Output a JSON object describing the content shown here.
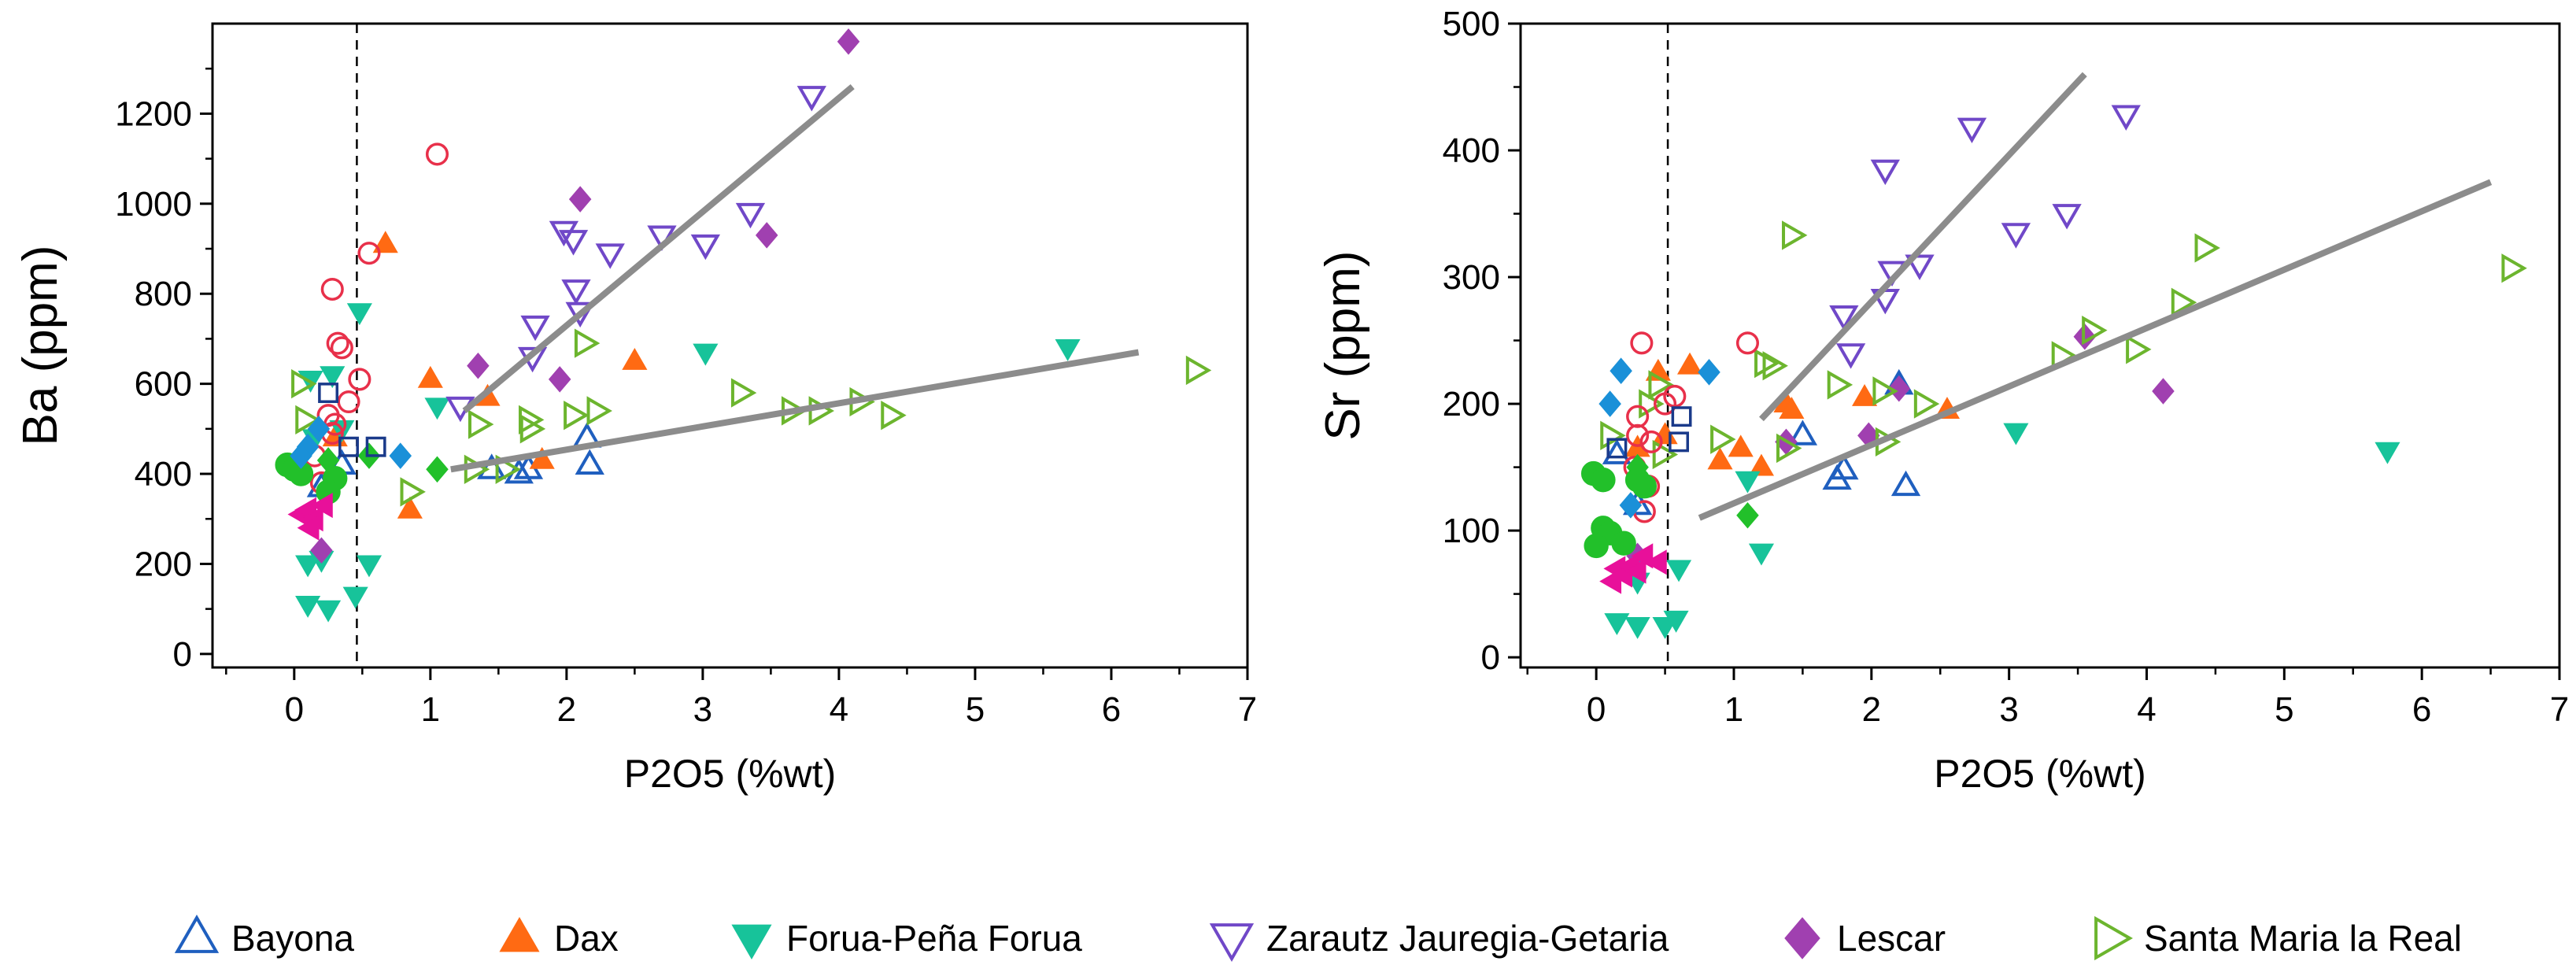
{
  "colors": {
    "bayona": "#1f5fbf",
    "dax": "#ff6a13",
    "forua": "#17c39a",
    "zarautz": "#7048c8",
    "lescar": "#a040b0",
    "santa_maria": "#6cb52e",
    "circle_open": "#e8304a",
    "green_fill": "#22c02a",
    "magenta_fill": "#e8109a",
    "blue_fill": "#1a90d8",
    "trend": "#8c8c8c"
  },
  "legend": {
    "items": [
      {
        "label": "Bayona",
        "marker": "triangle-up-open",
        "color": "#1f5fbf"
      },
      {
        "label": "Dax",
        "marker": "triangle-up-filled",
        "color": "#ff6a13"
      },
      {
        "label": "Forua-Peña Forua",
        "marker": "triangle-down-filled",
        "color": "#17c39a"
      },
      {
        "label": "Zarautz Jauregia-Getaria",
        "marker": "triangle-down-open",
        "color": "#7048c8"
      },
      {
        "label": "Lescar",
        "marker": "diamond-filled",
        "color": "#a040b0"
      },
      {
        "label": "Santa Maria la Real",
        "marker": "triangle-right-open",
        "color": "#6cb52e"
      }
    ]
  },
  "chart_data": [
    {
      "type": "scatter",
      "title": "",
      "xlabel": "P2O5 (%wt)",
      "ylabel": "Ba (ppm)",
      "xlim": [
        -0.6,
        7
      ],
      "ylim": [
        -30,
        1400
      ],
      "xticks": [
        0,
        1,
        2,
        3,
        4,
        5,
        6,
        7
      ],
      "yticks": [
        0,
        200,
        400,
        600,
        800,
        1000,
        1200
      ],
      "threshold_x": 0.46,
      "series": [
        {
          "name": "Bayona",
          "marker": "triangle-up-open",
          "color": "#1f5fbf",
          "points": [
            [
              1.45,
              410
            ],
            [
              1.65,
              400
            ],
            [
              1.72,
              410
            ],
            [
              2.15,
              480
            ],
            [
              2.17,
              420
            ],
            [
              0.35,
              420
            ],
            [
              0.2,
              370
            ]
          ]
        },
        {
          "name": "Dax",
          "marker": "triangle-up-filled",
          "color": "#ff6a13",
          "points": [
            [
              0.67,
              910
            ],
            [
              1.0,
              610
            ],
            [
              1.42,
              570
            ],
            [
              2.5,
              650
            ],
            [
              1.82,
              430
            ],
            [
              0.85,
              320
            ],
            [
              0.3,
              480
            ]
          ]
        },
        {
          "name": "Forua-Peña Forua",
          "marker": "triangle-down-filled",
          "color": "#17c39a",
          "points": [
            [
              0.48,
              760
            ],
            [
              0.12,
              610
            ],
            [
              0.28,
              620
            ],
            [
              1.05,
              550
            ],
            [
              3.02,
              670
            ],
            [
              5.68,
              680
            ],
            [
              0.1,
              200
            ],
            [
              0.2,
              210
            ],
            [
              0.55,
              200
            ],
            [
              0.1,
              110
            ],
            [
              0.25,
              100
            ],
            [
              0.45,
              130
            ],
            [
              0.35,
              500
            ],
            [
              0.15,
              480
            ]
          ]
        },
        {
          "name": "Zarautz Jauregia-Getaria",
          "marker": "triangle-down-open",
          "color": "#7048c8",
          "points": [
            [
              3.8,
              1240
            ],
            [
              3.35,
              980
            ],
            [
              1.98,
              940
            ],
            [
              2.05,
              920
            ],
            [
              2.32,
              890
            ],
            [
              2.7,
              930
            ],
            [
              3.02,
              910
            ],
            [
              1.77,
              730
            ],
            [
              2.07,
              810
            ],
            [
              2.1,
              760
            ],
            [
              1.75,
              660
            ],
            [
              1.22,
              550
            ]
          ]
        },
        {
          "name": "Lescar",
          "marker": "diamond-filled",
          "color": "#a040b0",
          "points": [
            [
              4.07,
              1360
            ],
            [
              2.1,
              1010
            ],
            [
              3.47,
              930
            ],
            [
              1.35,
              640
            ],
            [
              1.95,
              610
            ],
            [
              0.2,
              230
            ]
          ]
        },
        {
          "name": "Santa Maria la Real",
          "marker": "triangle-right-open",
          "color": "#6cb52e",
          "points": [
            [
              2.13,
              690
            ],
            [
              6.62,
              630
            ],
            [
              3.28,
              580
            ],
            [
              3.65,
              540
            ],
            [
              3.85,
              540
            ],
            [
              4.15,
              560
            ],
            [
              4.38,
              530
            ],
            [
              2.05,
              530
            ],
            [
              2.22,
              540
            ],
            [
              1.72,
              520
            ],
            [
              1.73,
              500
            ],
            [
              1.35,
              510
            ],
            [
              0.85,
              360
            ],
            [
              1.32,
              410
            ],
            [
              1.55,
              410
            ],
            [
              0.05,
              600
            ],
            [
              0.08,
              520
            ]
          ]
        },
        {
          "name": "Open circles",
          "marker": "circle-open",
          "color": "#e8304a",
          "points": [
            [
              1.05,
              1110
            ],
            [
              0.55,
              890
            ],
            [
              0.28,
              810
            ],
            [
              0.32,
              690
            ],
            [
              0.35,
              680
            ],
            [
              0.48,
              610
            ],
            [
              0.25,
              530
            ],
            [
              0.3,
              510
            ],
            [
              0.28,
              490
            ],
            [
              0.4,
              560
            ],
            [
              0.15,
              440
            ],
            [
              0.2,
              380
            ]
          ]
        },
        {
          "name": "Green filled circles",
          "marker": "circle-filled",
          "color": "#22c02a",
          "points": [
            [
              -0.05,
              420
            ],
            [
              0.0,
              410
            ],
            [
              0.05,
              400
            ],
            [
              0.3,
              390
            ],
            [
              0.25,
              360
            ]
          ]
        },
        {
          "name": "Magenta filled triangles",
          "marker": "triangle-left-filled",
          "color": "#e8109a",
          "points": [
            [
              0.05,
              310
            ],
            [
              0.1,
              320
            ],
            [
              0.15,
              300
            ],
            [
              0.22,
              330
            ],
            [
              0.12,
              280
            ]
          ]
        },
        {
          "name": "Blue filled diamonds",
          "marker": "diamond-filled",
          "color": "#1a90d8",
          "points": [
            [
              0.78,
              440
            ],
            [
              0.1,
              460
            ],
            [
              0.05,
              440
            ],
            [
              0.18,
              500
            ]
          ]
        },
        {
          "name": "Green filled diamonds",
          "marker": "diamond-filled",
          "color": "#22c02a",
          "points": [
            [
              1.05,
              410
            ],
            [
              0.25,
              430
            ],
            [
              0.55,
              440
            ]
          ]
        },
        {
          "name": "Navy open squares",
          "marker": "square-open",
          "color": "#1a3a8a",
          "points": [
            [
              0.6,
              460
            ],
            [
              0.4,
              460
            ],
            [
              0.25,
              580
            ]
          ]
        }
      ],
      "trendlines": [
        {
          "from": [
            1.25,
            540
          ],
          "to": [
            4.1,
            1260
          ]
        },
        {
          "from": [
            1.15,
            410
          ],
          "to": [
            6.2,
            670
          ]
        }
      ]
    },
    {
      "type": "scatter",
      "title": "",
      "xlabel": "P2O5 (%wt)",
      "ylabel": "Sr (ppm)",
      "xlim": [
        -0.55,
        7
      ],
      "ylim": [
        -8,
        500
      ],
      "xticks": [
        0,
        1,
        2,
        3,
        4,
        5,
        6,
        7
      ],
      "yticks": [
        0,
        100,
        200,
        300,
        400,
        500
      ],
      "threshold_x": 0.52,
      "series": [
        {
          "name": "Bayona",
          "marker": "triangle-up-open",
          "color": "#1f5fbf",
          "points": [
            [
              1.5,
              175
            ],
            [
              1.75,
              140
            ],
            [
              1.8,
              148
            ],
            [
              2.25,
              135
            ],
            [
              2.2,
              215
            ],
            [
              0.3,
              120
            ],
            [
              0.15,
              160
            ]
          ]
        },
        {
          "name": "Dax",
          "marker": "triangle-up-filled",
          "color": "#ff6a13",
          "points": [
            [
              0.45,
              225
            ],
            [
              0.68,
              230
            ],
            [
              0.9,
              155
            ],
            [
              1.05,
              165
            ],
            [
              1.2,
              150
            ],
            [
              1.38,
              200
            ],
            [
              1.42,
              195
            ],
            [
              1.95,
              205
            ],
            [
              2.55,
              195
            ],
            [
              0.5,
              175
            ],
            [
              0.3,
              165
            ]
          ]
        },
        {
          "name": "Forua-Peña Forua",
          "marker": "triangle-down-filled",
          "color": "#17c39a",
          "points": [
            [
              1.2,
              83
            ],
            [
              1.1,
              140
            ],
            [
              3.05,
              178
            ],
            [
              5.75,
              163
            ],
            [
              0.6,
              70
            ],
            [
              0.3,
              60
            ],
            [
              0.15,
              28
            ],
            [
              0.3,
              25
            ],
            [
              0.5,
              25
            ],
            [
              0.58,
              30
            ]
          ]
        },
        {
          "name": "Zarautz Jauregia-Getaria",
          "marker": "triangle-down-open",
          "color": "#7048c8",
          "points": [
            [
              3.85,
              428
            ],
            [
              2.73,
              418
            ],
            [
              2.1,
              385
            ],
            [
              3.05,
              335
            ],
            [
              3.42,
              350
            ],
            [
              2.15,
              305
            ],
            [
              2.35,
              310
            ],
            [
              2.1,
              283
            ],
            [
              1.8,
              270
            ],
            [
              1.85,
              240
            ]
          ]
        },
        {
          "name": "Lescar",
          "marker": "diamond-filled",
          "color": "#a040b0",
          "points": [
            [
              3.55,
              253
            ],
            [
              2.2,
              212
            ],
            [
              1.98,
              175
            ],
            [
              1.38,
              170
            ],
            [
              4.12,
              210
            ],
            [
              0.3,
              80
            ]
          ]
        },
        {
          "name": "Santa Maria la Real",
          "marker": "triangle-right-open",
          "color": "#6cb52e",
          "points": [
            [
              6.65,
              307
            ],
            [
              4.42,
              323
            ],
            [
              4.25,
              280
            ],
            [
              3.6,
              258
            ],
            [
              3.92,
              243
            ],
            [
              3.38,
              238
            ],
            [
              1.42,
              333
            ],
            [
              1.22,
              232
            ],
            [
              1.28,
              230
            ],
            [
              1.75,
              215
            ],
            [
              2.08,
              210
            ],
            [
              2.38,
              200
            ],
            [
              0.9,
              172
            ],
            [
              2.1,
              170
            ],
            [
              1.38,
              165
            ],
            [
              0.48,
              160
            ],
            [
              0.45,
              215
            ],
            [
              0.38,
              200
            ],
            [
              0.1,
              175
            ]
          ]
        },
        {
          "name": "Open circles",
          "marker": "circle-open",
          "color": "#e8304a",
          "points": [
            [
              0.33,
              248
            ],
            [
              1.1,
              248
            ],
            [
              0.57,
              206
            ],
            [
              0.3,
              190
            ],
            [
              0.3,
              175
            ],
            [
              0.4,
              170
            ],
            [
              0.5,
              200
            ],
            [
              0.28,
              150
            ],
            [
              0.38,
              135
            ],
            [
              0.35,
              115
            ]
          ]
        },
        {
          "name": "Green filled circles",
          "marker": "circle-filled",
          "color": "#22c02a",
          "points": [
            [
              -0.02,
              145
            ],
            [
              0.05,
              140
            ],
            [
              0.05,
              102
            ],
            [
              0.1,
              98
            ],
            [
              0.0,
              88
            ],
            [
              0.2,
              90
            ],
            [
              0.3,
              140
            ],
            [
              0.35,
              135
            ]
          ]
        },
        {
          "name": "Magenta filled triangles",
          "marker": "triangle-left-filled",
          "color": "#e8109a",
          "points": [
            [
              0.15,
              70
            ],
            [
              0.2,
              65
            ],
            [
              0.25,
              72
            ],
            [
              0.3,
              68
            ],
            [
              0.12,
              60
            ],
            [
              0.35,
              80
            ],
            [
              0.45,
              75
            ]
          ]
        },
        {
          "name": "Blue filled diamonds",
          "marker": "diamond-filled",
          "color": "#1a90d8",
          "points": [
            [
              0.82,
              225
            ],
            [
              0.18,
              226
            ],
            [
              0.1,
              200
            ],
            [
              0.25,
              120
            ]
          ]
        },
        {
          "name": "Green filled diamonds",
          "marker": "diamond-filled",
          "color": "#22c02a",
          "points": [
            [
              1.1,
              112
            ],
            [
              0.3,
              150
            ]
          ]
        },
        {
          "name": "Navy open squares",
          "marker": "square-open",
          "color": "#1a3a8a",
          "points": [
            [
              0.62,
              190
            ],
            [
              0.6,
              170
            ],
            [
              0.15,
              165
            ]
          ]
        }
      ],
      "trendlines": [
        {
          "from": [
            1.2,
            188
          ],
          "to": [
            3.55,
            460
          ]
        },
        {
          "from": [
            0.75,
            110
          ],
          "to": [
            6.5,
            375
          ]
        }
      ]
    }
  ]
}
